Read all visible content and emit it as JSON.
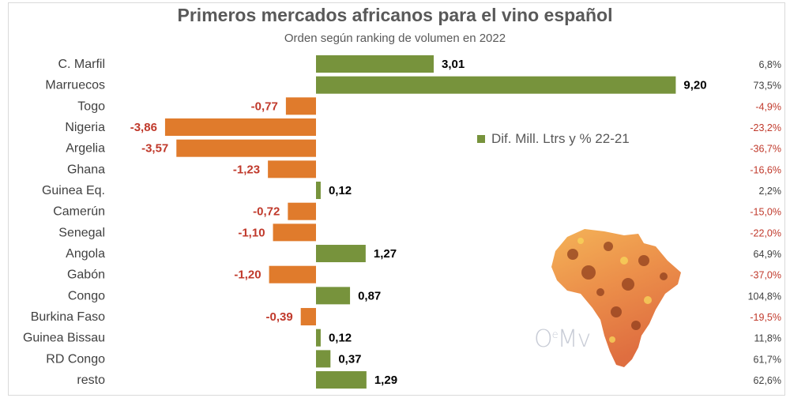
{
  "chart_data": {
    "type": "bar",
    "orientation": "horizontal",
    "title": "Primeros mercados africanos para el vino español",
    "subtitle": "Orden según ranking de volumen en 2022",
    "categories": [
      "C. Marfil",
      "Marruecos",
      "Togo",
      "Nigeria",
      "Argelia",
      "Ghana",
      "Guinea Eq.",
      "Camerún",
      "Senegal",
      "Angola",
      "Gabón",
      "Congo",
      "Burkina Faso",
      "Guinea Bissau",
      "RD Congo",
      "resto"
    ],
    "series": [
      {
        "name": "Dif. Mill. Ltrs y % 22-21",
        "values": [
          3.01,
          9.2,
          -0.77,
          -3.86,
          -3.57,
          -1.23,
          0.12,
          -0.72,
          -1.1,
          1.27,
          -1.2,
          0.87,
          -0.39,
          0.12,
          0.37,
          1.29
        ],
        "labels": [
          "3,01",
          "9,20",
          "-0,77",
          "-3,86",
          "-3,57",
          "-1,23",
          "0,12",
          "-0,72",
          "-1,10",
          "1,27",
          "-1,20",
          "0,87",
          "-0,39",
          "0,12",
          "0,37",
          "1,29"
        ],
        "pct_change": [
          "6,8%",
          "73,5%",
          "-4,9%",
          "-23,2%",
          "-36,7%",
          "-16,6%",
          "2,2%",
          "-15,0%",
          "-22,0%",
          "64,9%",
          "-37,0%",
          "104,8%",
          "-19,5%",
          "11,8%",
          "61,7%",
          "62,6%"
        ]
      }
    ],
    "legend": "center-right",
    "grid": false,
    "xlim": [
      -4,
      10
    ]
  },
  "colors": {
    "positive": "#77933c",
    "negative": "#e07b2c",
    "negative_text": "#c0392b",
    "text": "#404040"
  },
  "legend_label": "Dif. Mill. Ltrs y % 22-21",
  "watermark": "OeMv"
}
